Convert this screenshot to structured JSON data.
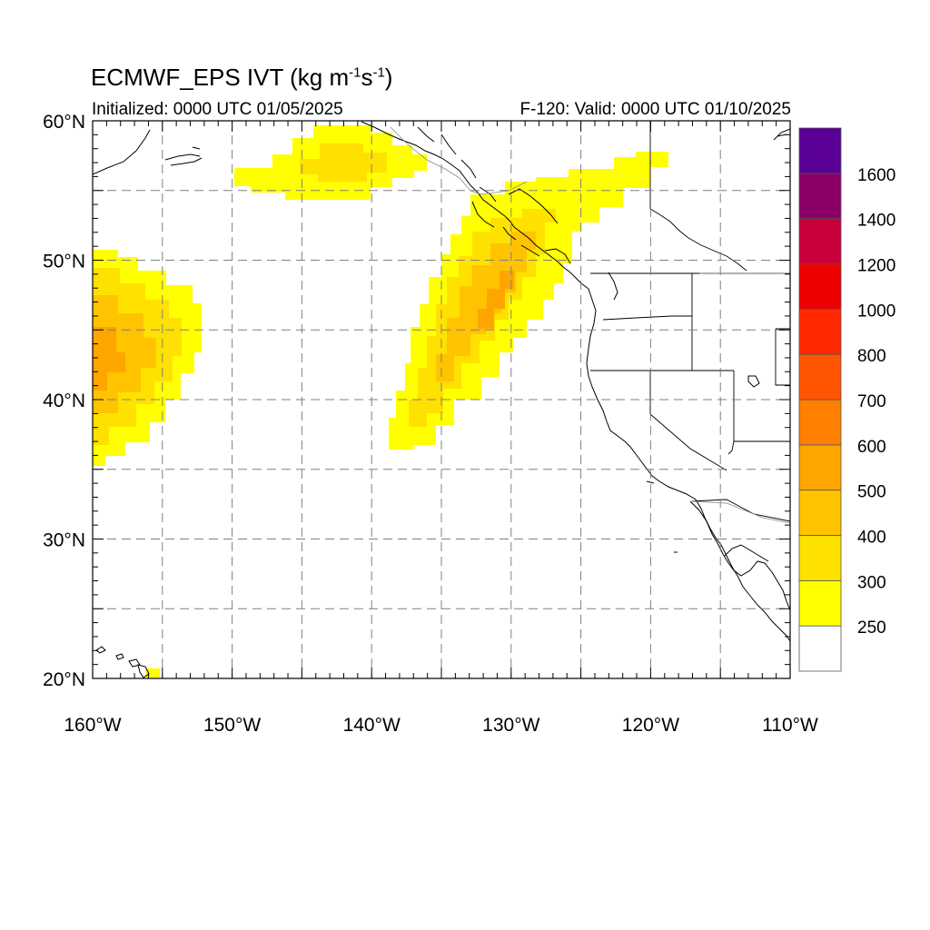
{
  "title": {
    "main": "ECMWF_EPS IVT (kg m",
    "exp1": "-1",
    "mid": "s",
    "exp2": "-1",
    "close": ")"
  },
  "subtitle_left": "Initialized: 0000 UTC 01/05/2025",
  "subtitle_right": "F-120: Valid: 0000 UTC 01/10/2025",
  "map": {
    "lon_range": [
      -160,
      -110
    ],
    "lat_range": [
      20,
      60
    ],
    "grid": "dashed",
    "lon_ticks": [
      {
        "value": -160,
        "label": "160°W"
      },
      {
        "value": -150,
        "label": "150°W"
      },
      {
        "value": -140,
        "label": "140°W"
      },
      {
        "value": -130,
        "label": "130°W"
      },
      {
        "value": -120,
        "label": "120°W"
      },
      {
        "value": -110,
        "label": "110°W"
      }
    ],
    "lat_ticks": [
      {
        "value": 20,
        "label": "20°N"
      },
      {
        "value": 30,
        "label": "30°N"
      },
      {
        "value": 40,
        "label": "40°N"
      },
      {
        "value": 50,
        "label": "50°N"
      },
      {
        "value": 60,
        "label": "60°N"
      }
    ]
  },
  "colorbar": {
    "labels": [
      "250",
      "300",
      "400",
      "500",
      "600",
      "700",
      "800",
      "1000",
      "1200",
      "1400",
      "1600"
    ],
    "colors": [
      "#ffffff",
      "#ffff00",
      "#ffe100",
      "#ffc300",
      "#ffa500",
      "#ff7f00",
      "#ff5500",
      "#ff2a00",
      "#ee0000",
      "#c8003c",
      "#8b0066",
      "#5a0096"
    ]
  }
}
